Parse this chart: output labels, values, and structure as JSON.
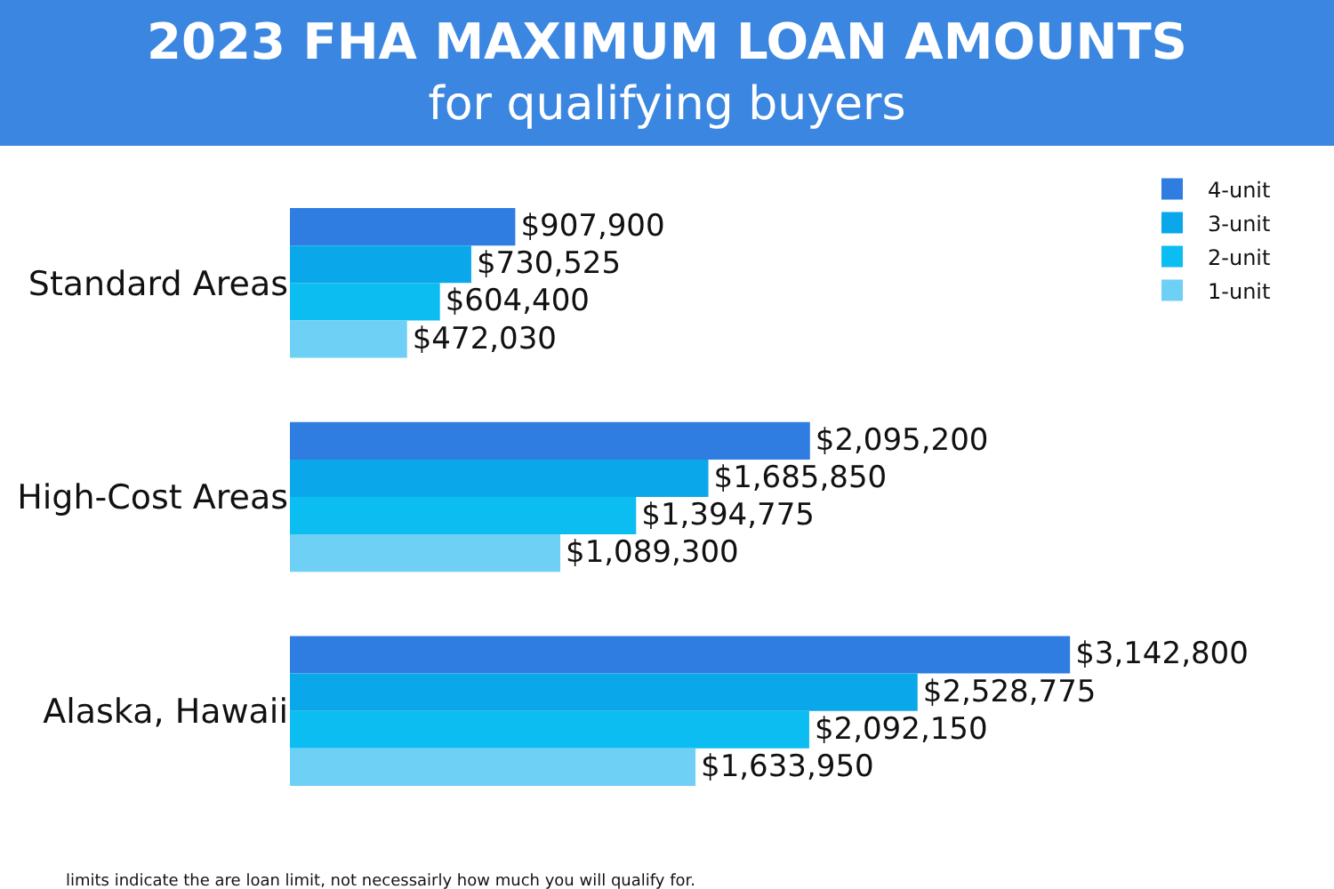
{
  "chart_data": {
    "type": "bar",
    "orientation": "horizontal",
    "title": "2023 FHA MAXIMUM LOAN AMOUNTS",
    "subtitle": "for qualifying buyers",
    "categories": [
      "Standard Areas",
      "High-Cost Areas",
      "Alaska, Hawaii"
    ],
    "series": [
      {
        "name": "4-unit",
        "color": "#2f7de1",
        "values": [
          907900,
          2095200,
          3142800
        ],
        "value_labels": [
          "$907,900",
          "$2,095,200",
          "$3,142,800"
        ]
      },
      {
        "name": "3-unit",
        "color": "#0aa8ea",
        "values": [
          730525,
          1685850,
          2528775
        ],
        "value_labels": [
          "$730,525",
          "$1,685,850",
          "$2,528,775"
        ]
      },
      {
        "name": "2-unit",
        "color": "#0bbdf0",
        "values": [
          604400,
          1394775,
          2092150
        ],
        "value_labels": [
          "$604,400",
          "$1,394,775",
          "$2,092,150"
        ]
      },
      {
        "name": "1-unit",
        "color": "#6fd0f5",
        "values": [
          472030,
          1089300,
          1633950
        ],
        "value_labels": [
          "$472,030",
          "$1,089,300",
          "$1,633,950"
        ]
      }
    ],
    "legend": "top right",
    "annotations": [
      "limits indicate the are loan limit, not necessairly how much you will qualify for."
    ]
  }
}
